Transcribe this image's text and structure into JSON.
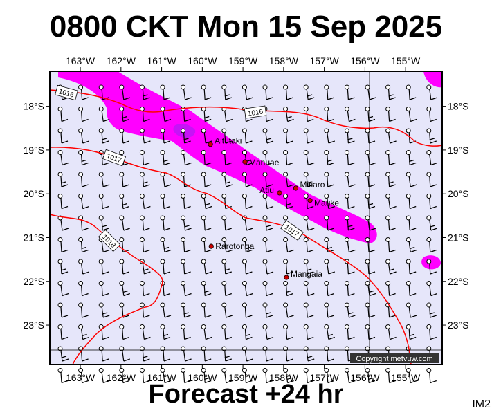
{
  "title": "0800 CKT Mon 15 Sep 2025",
  "footer": "Forecast +24 hr",
  "corner_code": "IM2",
  "credit": "Copyright metvuw.com",
  "colors": {
    "ocean": "#e6e6fa",
    "rain_heavy": "#ff00ff",
    "rain_core": "#a020f0",
    "isobar": "#ff0000",
    "island": "#cc0000"
  },
  "longitude_labels": [
    "163°W",
    "162°W",
    "161°W",
    "160°W",
    "159°W",
    "158°W",
    "157°W",
    "156°W",
    "155°W"
  ],
  "longitudes": [
    -163,
    -162,
    -161,
    -160,
    -159,
    -158,
    -157,
    -156,
    -155
  ],
  "latitude_labels": [
    "18°S",
    "19°S",
    "20°S",
    "21°S",
    "22°S",
    "23°S"
  ],
  "latitudes": [
    -18,
    -19,
    -20,
    -21,
    -22,
    -23
  ],
  "map_extent": {
    "lon_min": -163.75,
    "lon_max": -154.1,
    "lat_max": -17.2,
    "lat_min": -23.9
  },
  "islands": [
    {
      "name": "Aitutaki",
      "lon": -159.8,
      "lat": -18.87
    },
    {
      "name": "Manuae",
      "lon": -158.95,
      "lat": -19.27
    },
    {
      "name": "Mitiaro",
      "lon": -157.7,
      "lat": -19.87
    },
    {
      "name": "Atiu",
      "lon": -158.1,
      "lat": -19.98
    },
    {
      "name": "Mauke",
      "lon": -157.35,
      "lat": -20.15
    },
    {
      "name": "Rarotonga",
      "lon": -159.78,
      "lat": -21.2
    },
    {
      "name": "Mangaia",
      "lon": -157.93,
      "lat": -21.91
    }
  ],
  "isobar_labels": [
    "1016",
    "1016",
    "1017",
    "1017",
    "1018"
  ]
}
